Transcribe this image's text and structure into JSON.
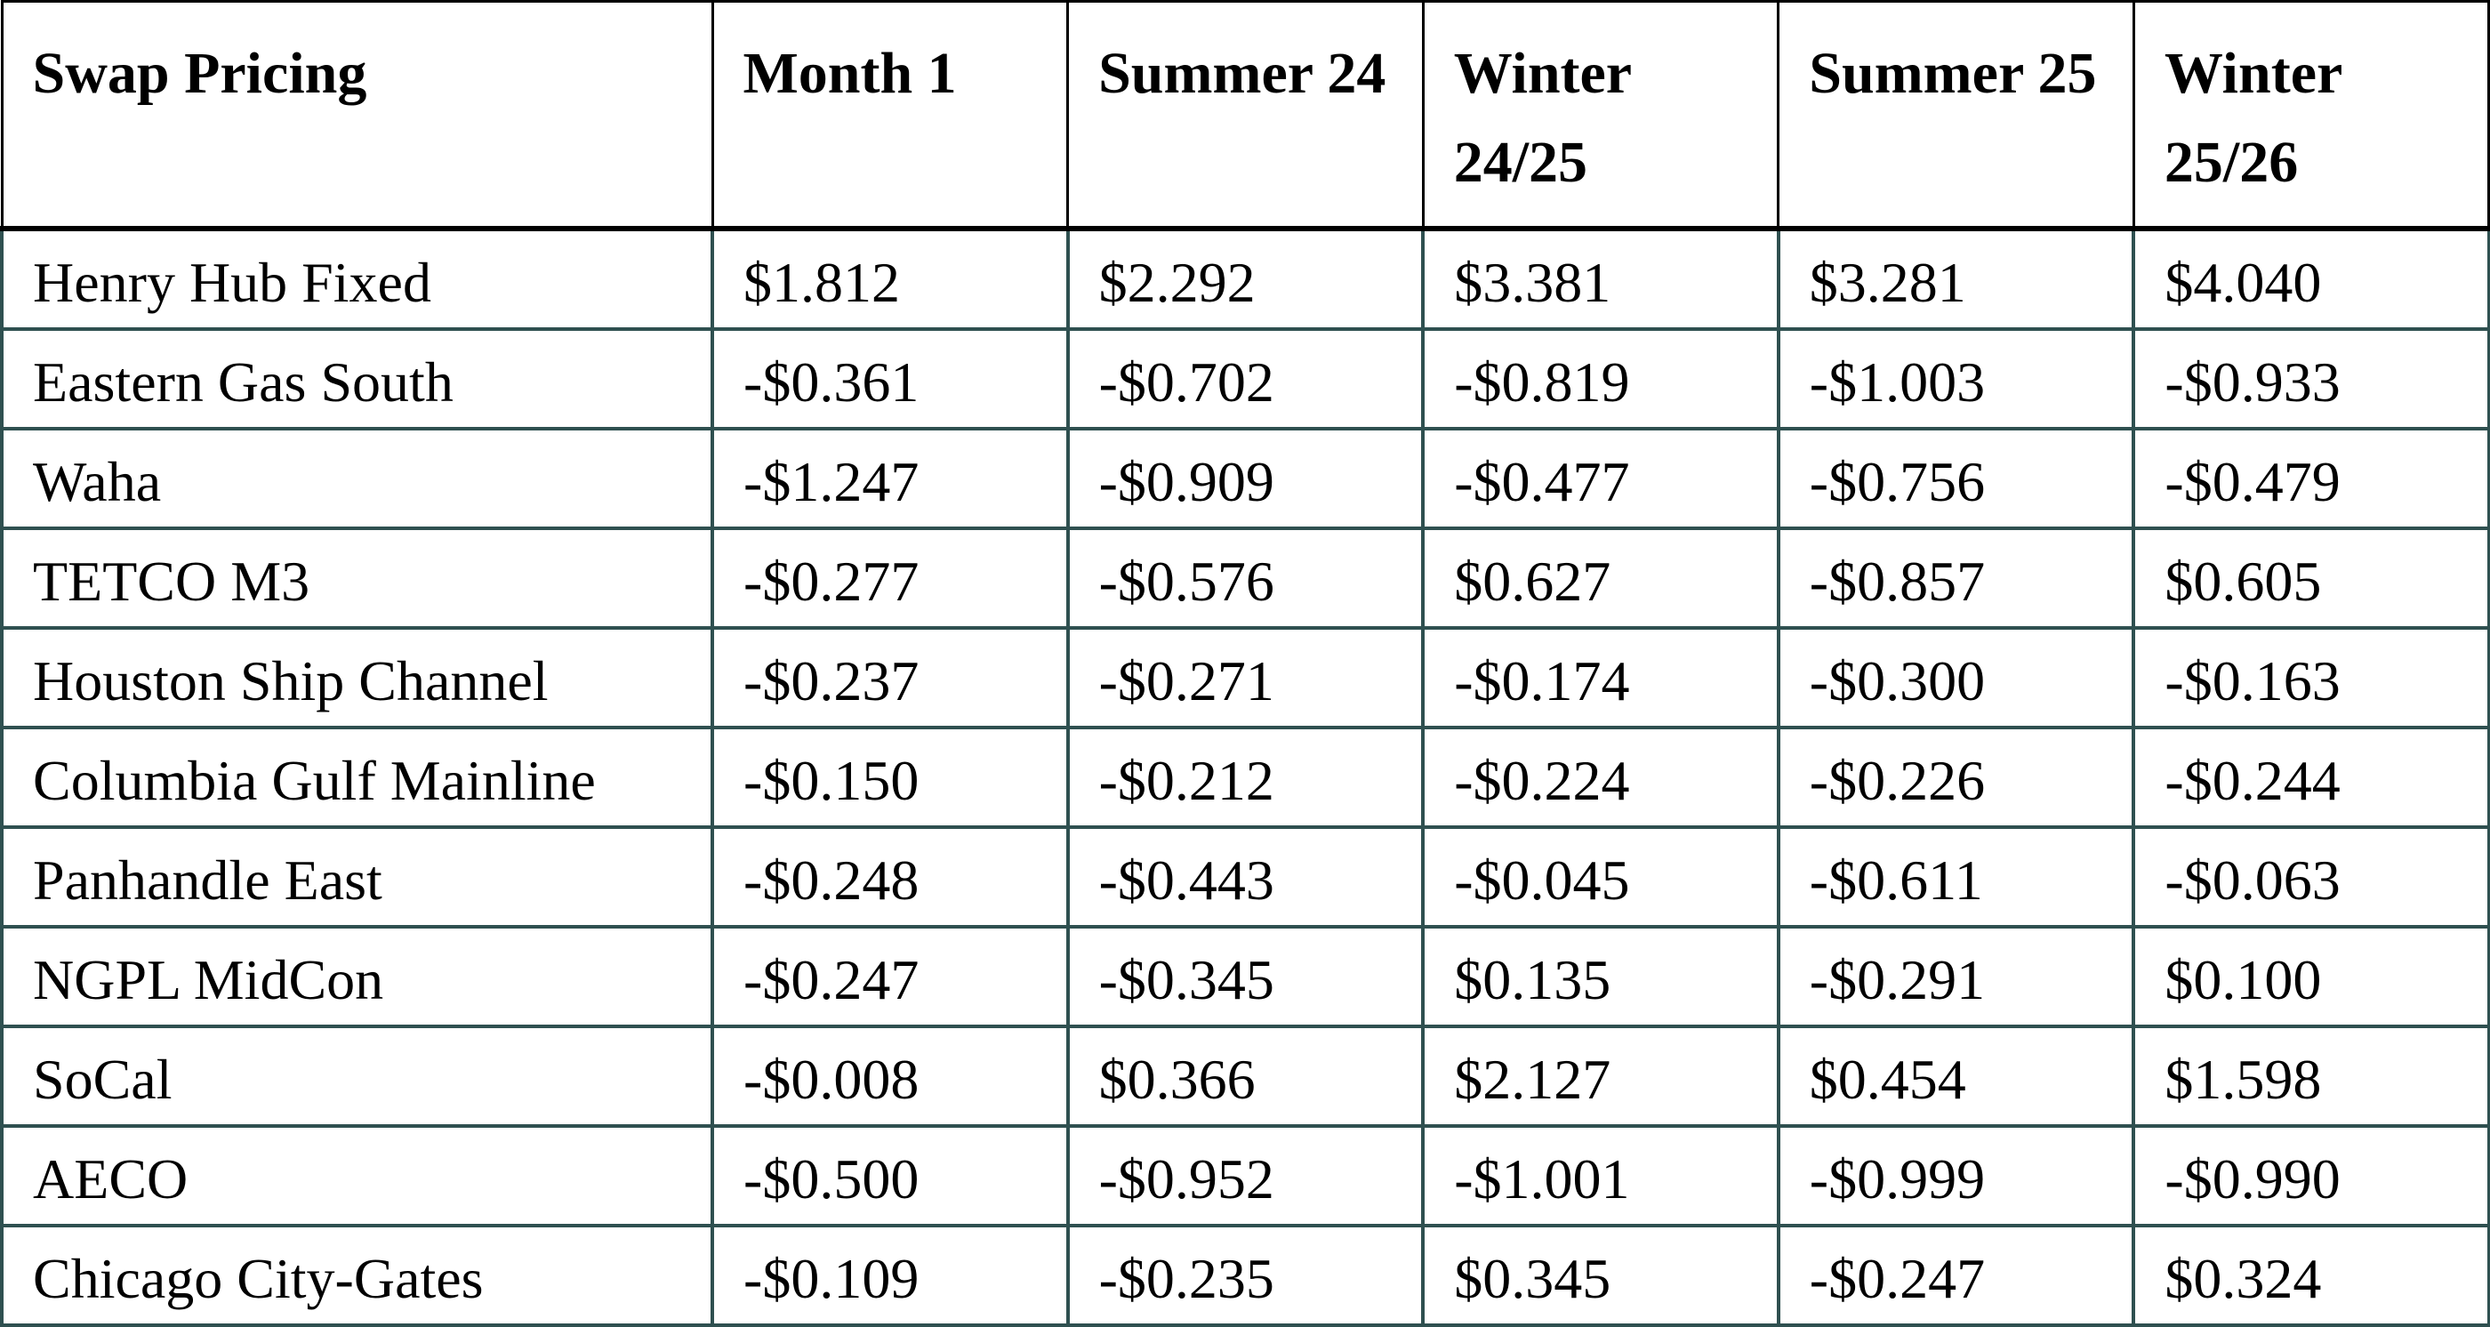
{
  "table": {
    "headers": [
      "Swap Pricing",
      "Month 1",
      "Summer 24",
      "Winter 24/25",
      "Summer 25",
      "Winter 25/26"
    ],
    "rows": [
      [
        "Henry Hub Fixed",
        "$1.812",
        "$2.292",
        "$3.381",
        "$3.281",
        "$4.040"
      ],
      [
        "Eastern Gas South",
        "-$0.361",
        "-$0.702",
        "-$0.819",
        "-$1.003",
        "-$0.933"
      ],
      [
        "Waha",
        "-$1.247",
        "-$0.909",
        "-$0.477",
        "-$0.756",
        "-$0.479"
      ],
      [
        "TETCO M3",
        "-$0.277",
        "-$0.576",
        "$0.627",
        "-$0.857",
        "$0.605"
      ],
      [
        "Houston Ship Channel",
        "-$0.237",
        "-$0.271",
        "-$0.174",
        "-$0.300",
        "-$0.163"
      ],
      [
        "Columbia Gulf Mainline",
        "-$0.150",
        "-$0.212",
        "-$0.224",
        "-$0.226",
        "-$0.244"
      ],
      [
        "Panhandle East",
        "-$0.248",
        "-$0.443",
        "-$0.045",
        "-$0.611",
        "-$0.063"
      ],
      [
        "NGPL MidCon",
        "-$0.247",
        "-$0.345",
        "$0.135",
        "-$0.291",
        "$0.100"
      ],
      [
        "SoCal",
        "-$0.008",
        "$0.366",
        "$2.127",
        "$0.454",
        "$1.598"
      ],
      [
        "AECO",
        "-$0.500",
        "-$0.952",
        "-$1.001",
        "-$0.999",
        "-$0.990"
      ],
      [
        "Chicago City-Gates",
        "-$0.109",
        "-$0.235",
        "$0.345",
        "-$0.247",
        "$0.324"
      ]
    ]
  },
  "colors": {
    "header_border": "#000000",
    "row_border": "#2f5050"
  }
}
